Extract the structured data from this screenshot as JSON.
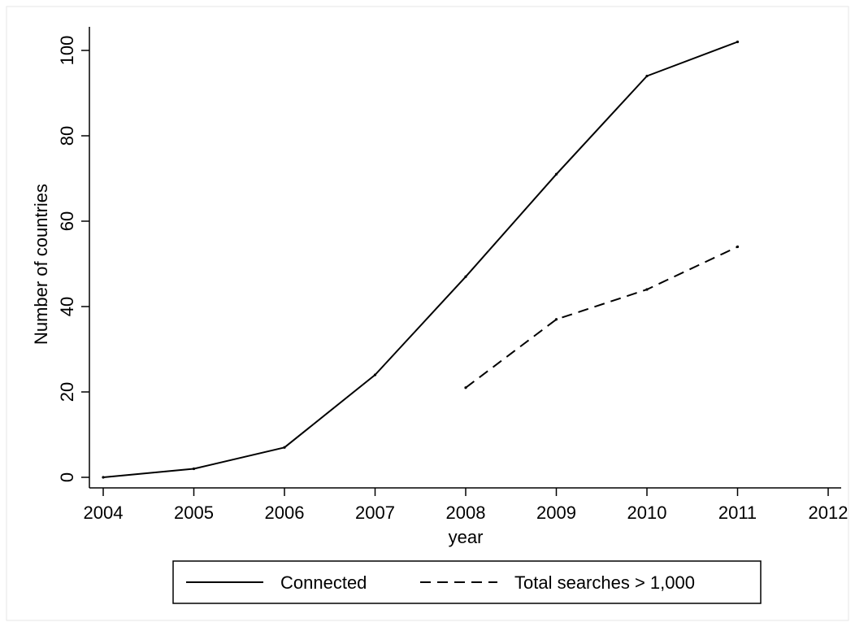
{
  "chart_data": {
    "type": "line",
    "title": "",
    "xlabel": "year",
    "ylabel": "Number of countries",
    "x_ticks": [
      "2004",
      "2005",
      "2006",
      "2007",
      "2008",
      "2009",
      "2010",
      "2011",
      "2012"
    ],
    "y_ticks": [
      "0",
      "20",
      "40",
      "60",
      "80",
      "100"
    ],
    "xlim": [
      2004,
      2012
    ],
    "ylim": [
      0,
      100
    ],
    "grid": false,
    "legend_position": "bottom",
    "series": [
      {
        "name": "Connected",
        "style": "solid",
        "color": "#000000",
        "x": [
          2004,
          2005,
          2006,
          2007,
          2008,
          2009,
          2010,
          2011
        ],
        "values": [
          0,
          2,
          7,
          24,
          47,
          71,
          94,
          102
        ]
      },
      {
        "name": "Total searches > 1,000",
        "style": "dashed",
        "color": "#000000",
        "x": [
          2008,
          2009,
          2010,
          2011
        ],
        "values": [
          21,
          37,
          44,
          54
        ]
      }
    ]
  }
}
